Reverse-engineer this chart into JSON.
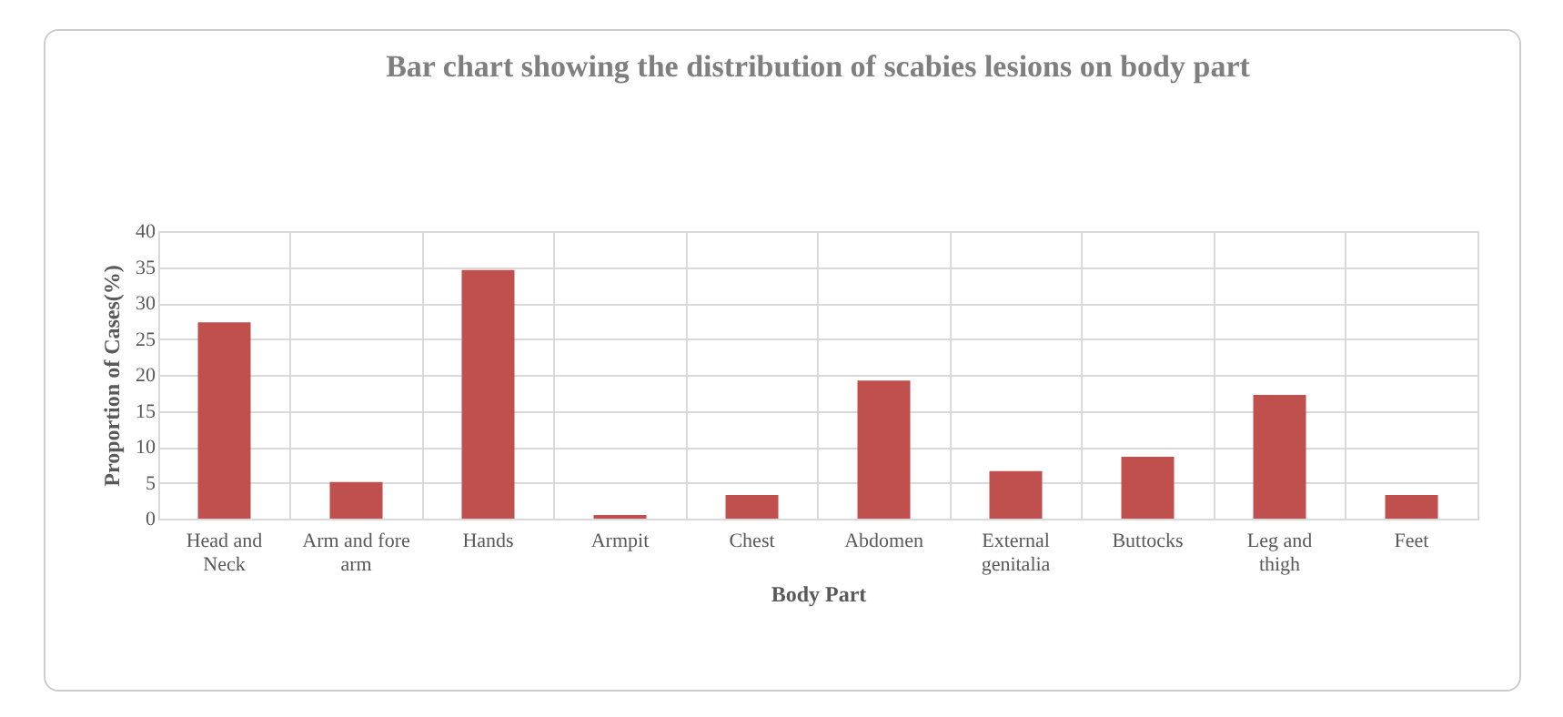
{
  "chart_data": {
    "type": "bar",
    "title": "Bar chart showing the distribution of scabies lesions on body part",
    "xlabel": "Body Part",
    "ylabel": "Proportion of Cases(%)",
    "categories": [
      "Head and Neck",
      "Arm and fore arm",
      "Hands",
      "Armpit",
      "Chest",
      "Abdomen",
      "External genitalia",
      "Buttocks",
      "Leg and thigh",
      "Feet"
    ],
    "values": [
      27.3,
      5.1,
      34.6,
      0.5,
      3.3,
      19.2,
      6.6,
      8.6,
      17.2,
      3.3
    ],
    "color": "#c0504d",
    "ylim": [
      0,
      40
    ],
    "yticks": [
      0,
      5,
      10,
      15,
      20,
      25,
      30,
      35,
      40
    ],
    "grid": true
  }
}
